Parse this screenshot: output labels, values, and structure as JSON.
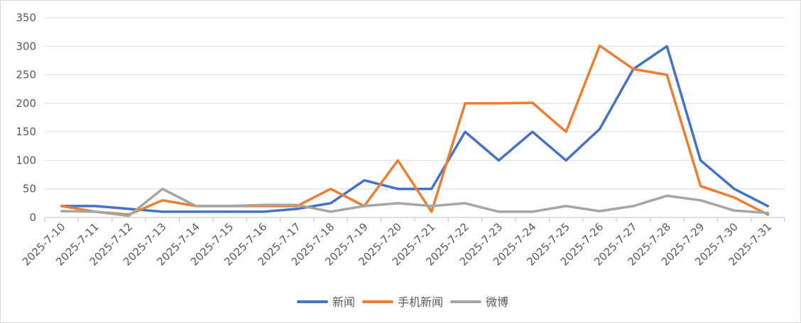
{
  "chart_data": {
    "type": "line",
    "title": "",
    "xlabel": "",
    "ylabel": "",
    "ylim": [
      0,
      350
    ],
    "yticks": [
      0,
      50,
      100,
      150,
      200,
      250,
      300,
      350
    ],
    "grid": true,
    "legend_position": "bottom",
    "categories": [
      "2025-7-10",
      "2025-7-11",
      "2025-7-12",
      "2025-7-13",
      "2025-7-14",
      "2025-7-15",
      "2025-7-16",
      "2025-7-17",
      "2025-7-18",
      "2025-7-19",
      "2025-7-20",
      "2025-7-21",
      "2025-7-22",
      "2025-7-23",
      "2025-7-24",
      "2025-7-25",
      "2025-7-26",
      "2025-7-27",
      "2025-7-28",
      "2025-7-29",
      "2025-7-30",
      "2025-7-31"
    ],
    "series": [
      {
        "name": "新闻",
        "color": "#4472C4",
        "values": [
          20,
          20,
          15,
          10,
          10,
          10,
          10,
          15,
          25,
          65,
          50,
          50,
          150,
          100,
          150,
          100,
          155,
          260,
          300,
          100,
          50,
          20
        ]
      },
      {
        "name": "手机新闻",
        "color": "#ED7D31",
        "values": [
          20,
          10,
          5,
          30,
          20,
          20,
          20,
          20,
          50,
          20,
          100,
          10,
          200,
          200,
          201,
          150,
          301,
          260,
          250,
          55,
          35,
          5
        ]
      },
      {
        "name": "微博",
        "color": "#A5A5A5",
        "values": [
          11,
          10,
          3,
          50,
          20,
          20,
          22,
          22,
          10,
          20,
          25,
          20,
          25,
          10,
          10,
          20,
          11,
          20,
          38,
          30,
          12,
          8
        ]
      }
    ]
  }
}
